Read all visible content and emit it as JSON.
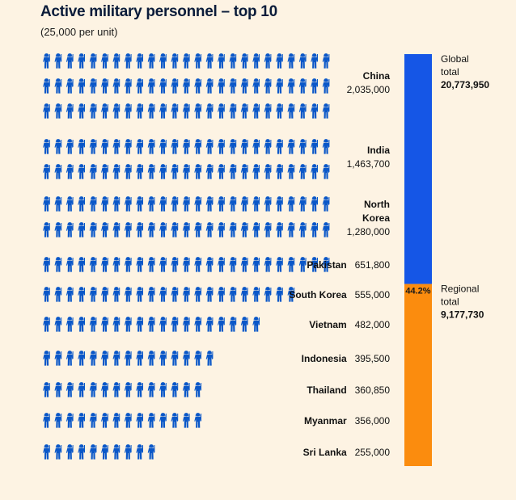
{
  "title": "Active military personnel – top 10",
  "subtitle": "(25,000 per unit)",
  "colors": {
    "soldier": "#0a57c8",
    "global_bar": "#1556e6",
    "regional_bar": "#fb8c0e",
    "background": "#fdf3e3"
  },
  "icon": "soldier-icon",
  "chart_data": {
    "type": "bar",
    "unit_size": 25000,
    "units_per_row": 25,
    "categories": [
      "China",
      "India",
      "North Korea",
      "Pakistan",
      "South Korea",
      "Vietnam",
      "Indonesia",
      "Thailand",
      "Myanmar",
      "Sri Lanka"
    ],
    "name_lines": [
      [
        "China"
      ],
      [
        "India"
      ],
      [
        "North",
        "Korea"
      ],
      [
        "Pakistan"
      ],
      [
        "South Korea"
      ],
      [
        "Vietnam"
      ],
      [
        "Indonesia"
      ],
      [
        "Thailand"
      ],
      [
        "Myanmar"
      ],
      [
        "Sri Lanka"
      ]
    ],
    "values": [
      2035000,
      1463700,
      1280000,
      651800,
      555000,
      482000,
      395500,
      360850,
      356000,
      255000
    ],
    "value_labels": [
      "2,035,000",
      "1,463,700",
      "1,280,000",
      "651,800",
      "555,000",
      "482,000",
      "395,500",
      "360,850",
      "356,000",
      "255,000"
    ],
    "stacked_bar": {
      "global_label_lines": [
        "Global",
        "total"
      ],
      "global_value": "20,773,950",
      "regional_label_lines": [
        "Regional",
        "total"
      ],
      "regional_value": "9,177,730",
      "regional_share_label": "44.2%",
      "regional_share": 0.442
    }
  }
}
